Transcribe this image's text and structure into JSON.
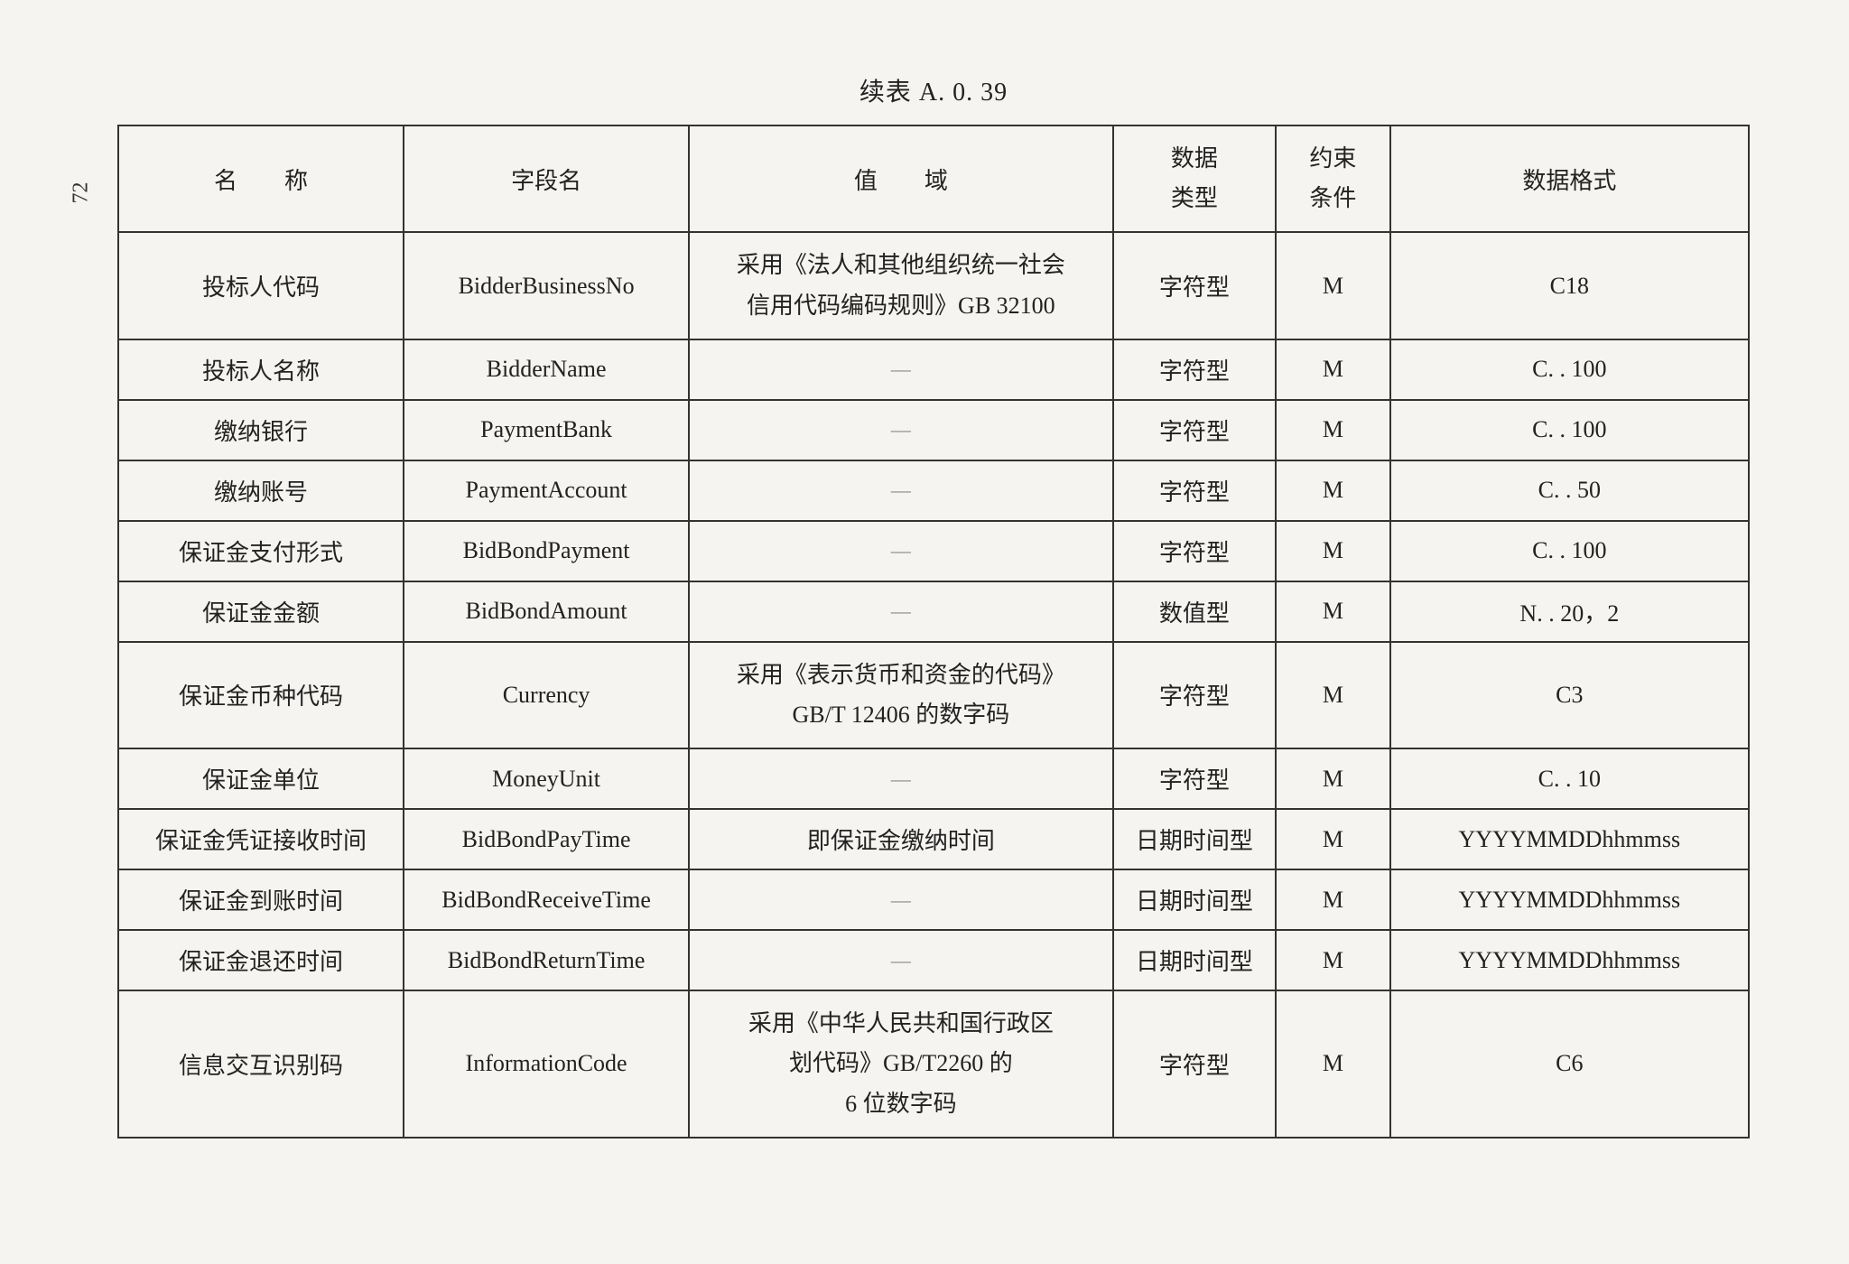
{
  "pageNumber": "72",
  "caption": "续表 A. 0. 39",
  "headers": {
    "name": "名　　称",
    "field": "字段名",
    "domain": "值　　域",
    "type": "数据\n类型",
    "constraint": "约束\n条件",
    "format": "数据格式"
  },
  "rows": [
    {
      "name": "投标人代码",
      "field": "BidderBusinessNo",
      "domain": "采用《法人和其他组织统一社会\n信用代码编码规则》GB 32100",
      "type": "字符型",
      "constraint": "M",
      "format": "C18"
    },
    {
      "name": "投标人名称",
      "field": "BidderName",
      "domain": "—",
      "type": "字符型",
      "constraint": "M",
      "format": "C. . 100"
    },
    {
      "name": "缴纳银行",
      "field": "PaymentBank",
      "domain": "—",
      "type": "字符型",
      "constraint": "M",
      "format": "C. . 100"
    },
    {
      "name": "缴纳账号",
      "field": "PaymentAccount",
      "domain": "—",
      "type": "字符型",
      "constraint": "M",
      "format": "C. . 50"
    },
    {
      "name": "保证金支付形式",
      "field": "BidBondPayment",
      "domain": "—",
      "type": "字符型",
      "constraint": "M",
      "format": "C. . 100"
    },
    {
      "name": "保证金金额",
      "field": "BidBondAmount",
      "domain": "—",
      "type": "数值型",
      "constraint": "M",
      "format": "N. . 20，2"
    },
    {
      "name": "保证金币种代码",
      "field": "Currency",
      "domain": "采用《表示货币和资金的代码》\nGB/T 12406 的数字码",
      "type": "字符型",
      "constraint": "M",
      "format": "C3"
    },
    {
      "name": "保证金单位",
      "field": "MoneyUnit",
      "domain": "—",
      "type": "字符型",
      "constraint": "M",
      "format": "C. . 10"
    },
    {
      "name": "保证金凭证接收时间",
      "field": "BidBondPayTime",
      "domain": "即保证金缴纳时间",
      "type": "日期时间型",
      "constraint": "M",
      "format": "YYYYMMDDhhmmss"
    },
    {
      "name": "保证金到账时间",
      "field": "BidBondReceiveTime",
      "domain": "—",
      "type": "日期时间型",
      "constraint": "M",
      "format": "YYYYMMDDhhmmss"
    },
    {
      "name": "保证金退还时间",
      "field": "BidBondReturnTime",
      "domain": "—",
      "type": "日期时间型",
      "constraint": "M",
      "format": "YYYYMMDDhhmmss"
    },
    {
      "name": "信息交互识别码",
      "field": "InformationCode",
      "domain": "采用《中华人民共和国行政区\n划代码》GB/T2260 的\n6 位数字码",
      "type": "字符型",
      "constraint": "M",
      "format": "C6"
    }
  ]
}
